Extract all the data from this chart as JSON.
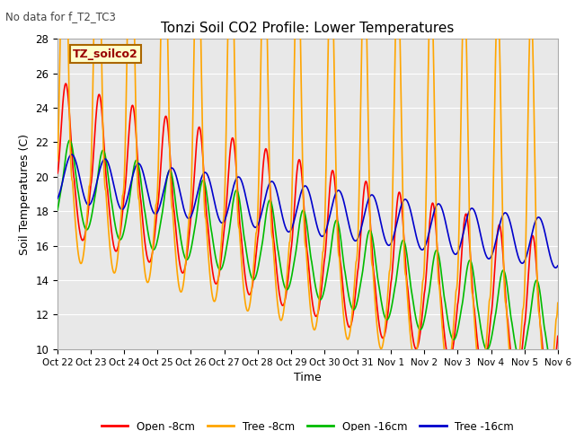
{
  "title": "Tonzi Soil CO2 Profile: Lower Temperatures",
  "subtitle": "No data for f_T2_TC3",
  "xlabel": "Time",
  "ylabel": "Soil Temperatures (C)",
  "ylim": [
    10,
    28
  ],
  "background_color": "#ffffff",
  "plot_bg_color": "#e8e8e8",
  "grid_color": "#ffffff",
  "xtick_labels": [
    "Oct 22",
    "Oct 23",
    "Oct 24",
    "Oct 25",
    "Oct 26",
    "Oct 27",
    "Oct 28",
    "Oct 29",
    "Oct 30",
    "Oct 31",
    "Nov 1",
    "Nov 2",
    "Nov 3",
    "Nov 4",
    "Nov 5",
    "Nov 6"
  ],
  "legend_label": "TZ_soilco2",
  "series_labels": [
    "Open -8cm",
    "Tree -8cm",
    "Open -16cm",
    "Tree -16cm"
  ],
  "series_colors": [
    "#ff0000",
    "#ffa500",
    "#00bb00",
    "#0000cc"
  ],
  "line_width": 1.2
}
